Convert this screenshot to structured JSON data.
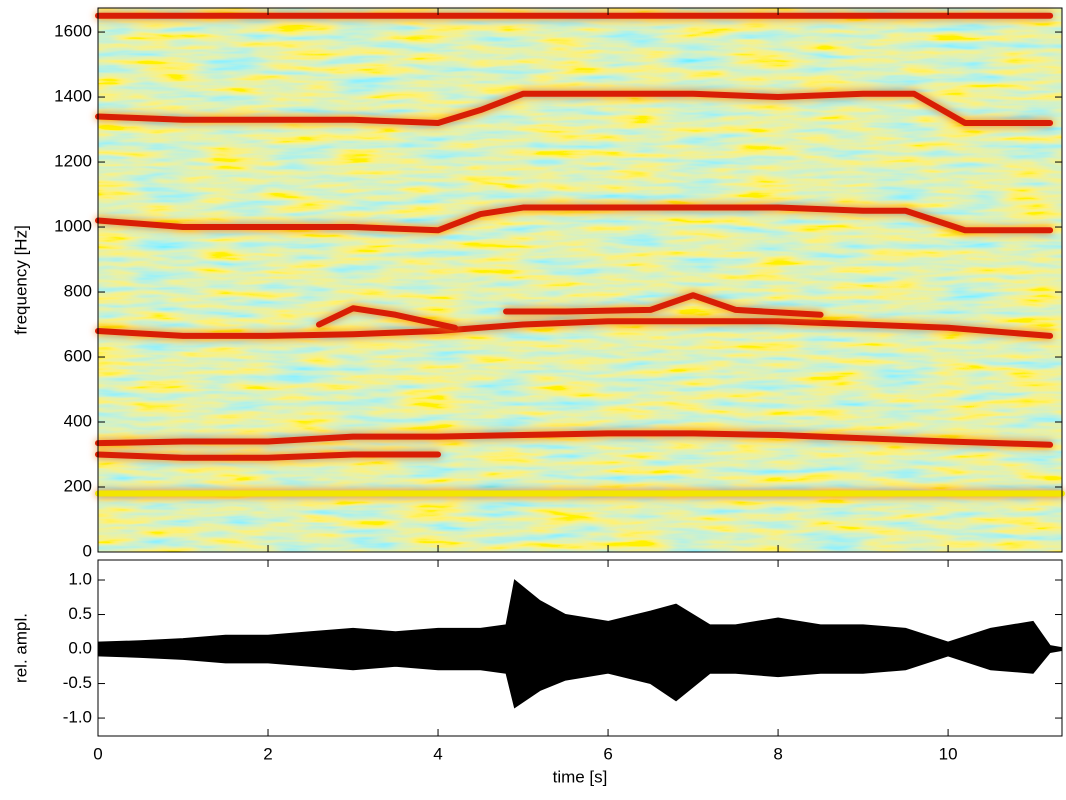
{
  "chart_data": [
    {
      "type": "spectrogram",
      "ylabel": "frequency [Hz]",
      "xlim": [
        0,
        11.34
      ],
      "xticks": [
        0,
        2,
        4,
        6,
        8,
        10
      ],
      "ylim": [
        0,
        1674
      ],
      "yticks": [
        0,
        200,
        400,
        600,
        800,
        1000,
        1200,
        1400,
        1600
      ],
      "series": [
        {
          "color": "#f2e600",
          "x": [
            0,
            11.34
          ],
          "values": [
            180,
            180
          ]
        },
        {
          "color": "#d81e05",
          "x": [
            0,
            1,
            2,
            3,
            4,
            5,
            6,
            7,
            8,
            9,
            10,
            11.2
          ],
          "values": [
            335,
            340,
            340,
            355,
            355,
            360,
            365,
            365,
            360,
            350,
            340,
            330
          ]
        },
        {
          "color": "#d81e05",
          "x": [
            0,
            1,
            2,
            3,
            4
          ],
          "values": [
            300,
            290,
            290,
            300,
            300
          ]
        },
        {
          "color": "#d81e05",
          "x": [
            0,
            1,
            2,
            3,
            4,
            5,
            6,
            7,
            8,
            9,
            10,
            11.2
          ],
          "values": [
            680,
            665,
            665,
            670,
            680,
            700,
            710,
            710,
            710,
            700,
            690,
            665
          ]
        },
        {
          "color": "#d81e05",
          "x": [
            4.8,
            5.5,
            6.5,
            7,
            7.5,
            8.5
          ],
          "values": [
            740,
            740,
            745,
            790,
            745,
            730
          ]
        },
        {
          "color": "#d81e05",
          "x": [
            2.6,
            3,
            3.5,
            4.2
          ],
          "values": [
            700,
            750,
            730,
            690
          ]
        },
        {
          "color": "#d81e05",
          "x": [
            0,
            1,
            2,
            3,
            4,
            4.5,
            5,
            6,
            7,
            8,
            9,
            9.5,
            10.2,
            11.2
          ],
          "values": [
            1020,
            1000,
            1000,
            1000,
            990,
            1040,
            1060,
            1060,
            1060,
            1060,
            1050,
            1050,
            990,
            990
          ]
        },
        {
          "color": "#d81e05",
          "x": [
            0,
            1,
            2,
            3,
            4,
            4.5,
            5,
            6,
            7,
            8,
            9,
            9.6,
            10.2,
            11.2
          ],
          "values": [
            1340,
            1330,
            1330,
            1330,
            1320,
            1360,
            1410,
            1410,
            1410,
            1400,
            1410,
            1410,
            1320,
            1320
          ]
        },
        {
          "color": "#d81e05",
          "x": [
            0,
            4.8,
            10.2,
            11.2
          ],
          "values": [
            1650,
            1650,
            1650,
            1650
          ]
        }
      ]
    },
    {
      "type": "area",
      "ylabel": "rel. ampl.",
      "xlabel": "time [s]",
      "xlim": [
        0,
        11.34
      ],
      "xticks": [
        0,
        2,
        4,
        6,
        8,
        10
      ],
      "ylim": [
        -1.26,
        1.29
      ],
      "yticks": [
        {
          "value": -1,
          "label": "-1.0"
        },
        {
          "value": -0.5,
          "label": "-0.5"
        },
        {
          "value": 0,
          "label": "0.0"
        },
        {
          "value": 0.5,
          "label": "0.5"
        },
        {
          "value": 1,
          "label": "1.0"
        }
      ],
      "color": "#000000",
      "x": [
        0,
        0.5,
        1,
        1.5,
        2,
        2.5,
        3,
        3.5,
        4,
        4.5,
        4.8,
        4.9,
        5.2,
        5.5,
        6,
        6.5,
        6.8,
        7.2,
        7.5,
        8,
        8.5,
        9,
        9.5,
        10,
        10.5,
        11,
        11.2,
        11.34
      ],
      "series": [
        {
          "values": [
            0.1,
            0.12,
            0.15,
            0.2,
            0.2,
            0.25,
            0.3,
            0.25,
            0.3,
            0.3,
            0.35,
            1.0,
            0.7,
            0.5,
            0.4,
            0.55,
            0.65,
            0.35,
            0.35,
            0.45,
            0.35,
            0.35,
            0.3,
            0.1,
            0.3,
            0.4,
            0.05,
            0.02
          ]
        },
        {
          "values": [
            -0.1,
            -0.12,
            -0.15,
            -0.2,
            -0.2,
            -0.25,
            -0.3,
            -0.25,
            -0.3,
            -0.3,
            -0.35,
            -0.85,
            -0.6,
            -0.45,
            -0.35,
            -0.5,
            -0.75,
            -0.35,
            -0.35,
            -0.4,
            -0.35,
            -0.35,
            -0.3,
            -0.1,
            -0.3,
            -0.35,
            -0.05,
            -0.02
          ]
        }
      ]
    }
  ]
}
